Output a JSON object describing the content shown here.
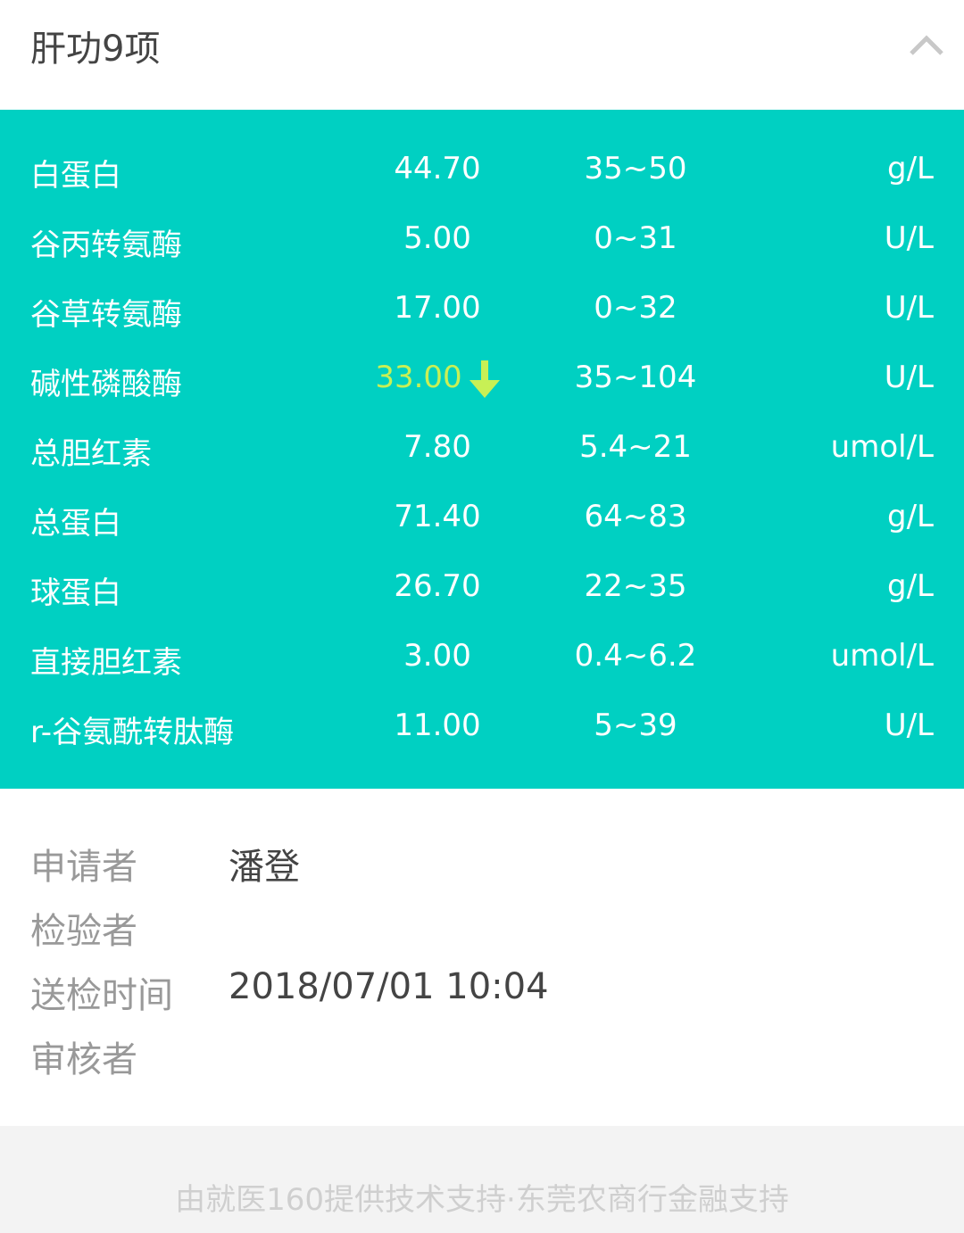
{
  "header": {
    "title": "肝功9项",
    "collapse_icon": "chevron-up-icon"
  },
  "colors": {
    "table_bg": "#00D0C2",
    "low_value": "#C8F055",
    "label": "#999999"
  },
  "results": [
    {
      "name": "白蛋白",
      "value": "44.70",
      "range": "35~50",
      "unit": "g/L",
      "flag": ""
    },
    {
      "name": "谷丙转氨酶",
      "value": "5.00",
      "range": "0~31",
      "unit": "U/L",
      "flag": ""
    },
    {
      "name": "谷草转氨酶",
      "value": "17.00",
      "range": "0~32",
      "unit": "U/L",
      "flag": ""
    },
    {
      "name": "碱性磷酸酶",
      "value": "33.00",
      "range": "35~104",
      "unit": "U/L",
      "flag": "low"
    },
    {
      "name": "总胆红素",
      "value": "7.80",
      "range": "5.4~21",
      "unit": "umol/L",
      "flag": ""
    },
    {
      "name": "总蛋白",
      "value": "71.40",
      "range": "64~83",
      "unit": "g/L",
      "flag": ""
    },
    {
      "name": "球蛋白",
      "value": "26.70",
      "range": "22~35",
      "unit": "g/L",
      "flag": ""
    },
    {
      "name": "直接胆红素",
      "value": "3.00",
      "range": "0.4~6.2",
      "unit": "umol/L",
      "flag": ""
    },
    {
      "name": "r-谷氨酰转肽酶",
      "value": "11.00",
      "range": "5~39",
      "unit": "U/L",
      "flag": ""
    }
  ],
  "info": [
    {
      "label": "申请者",
      "value": "潘登"
    },
    {
      "label": "检验者",
      "value": ""
    },
    {
      "label": "送检时间",
      "value": "2018/07/01 10:04"
    },
    {
      "label": "审核者",
      "value": ""
    }
  ],
  "footer": {
    "text": "由就医160提供技术支持·东莞农商行金融支持"
  }
}
